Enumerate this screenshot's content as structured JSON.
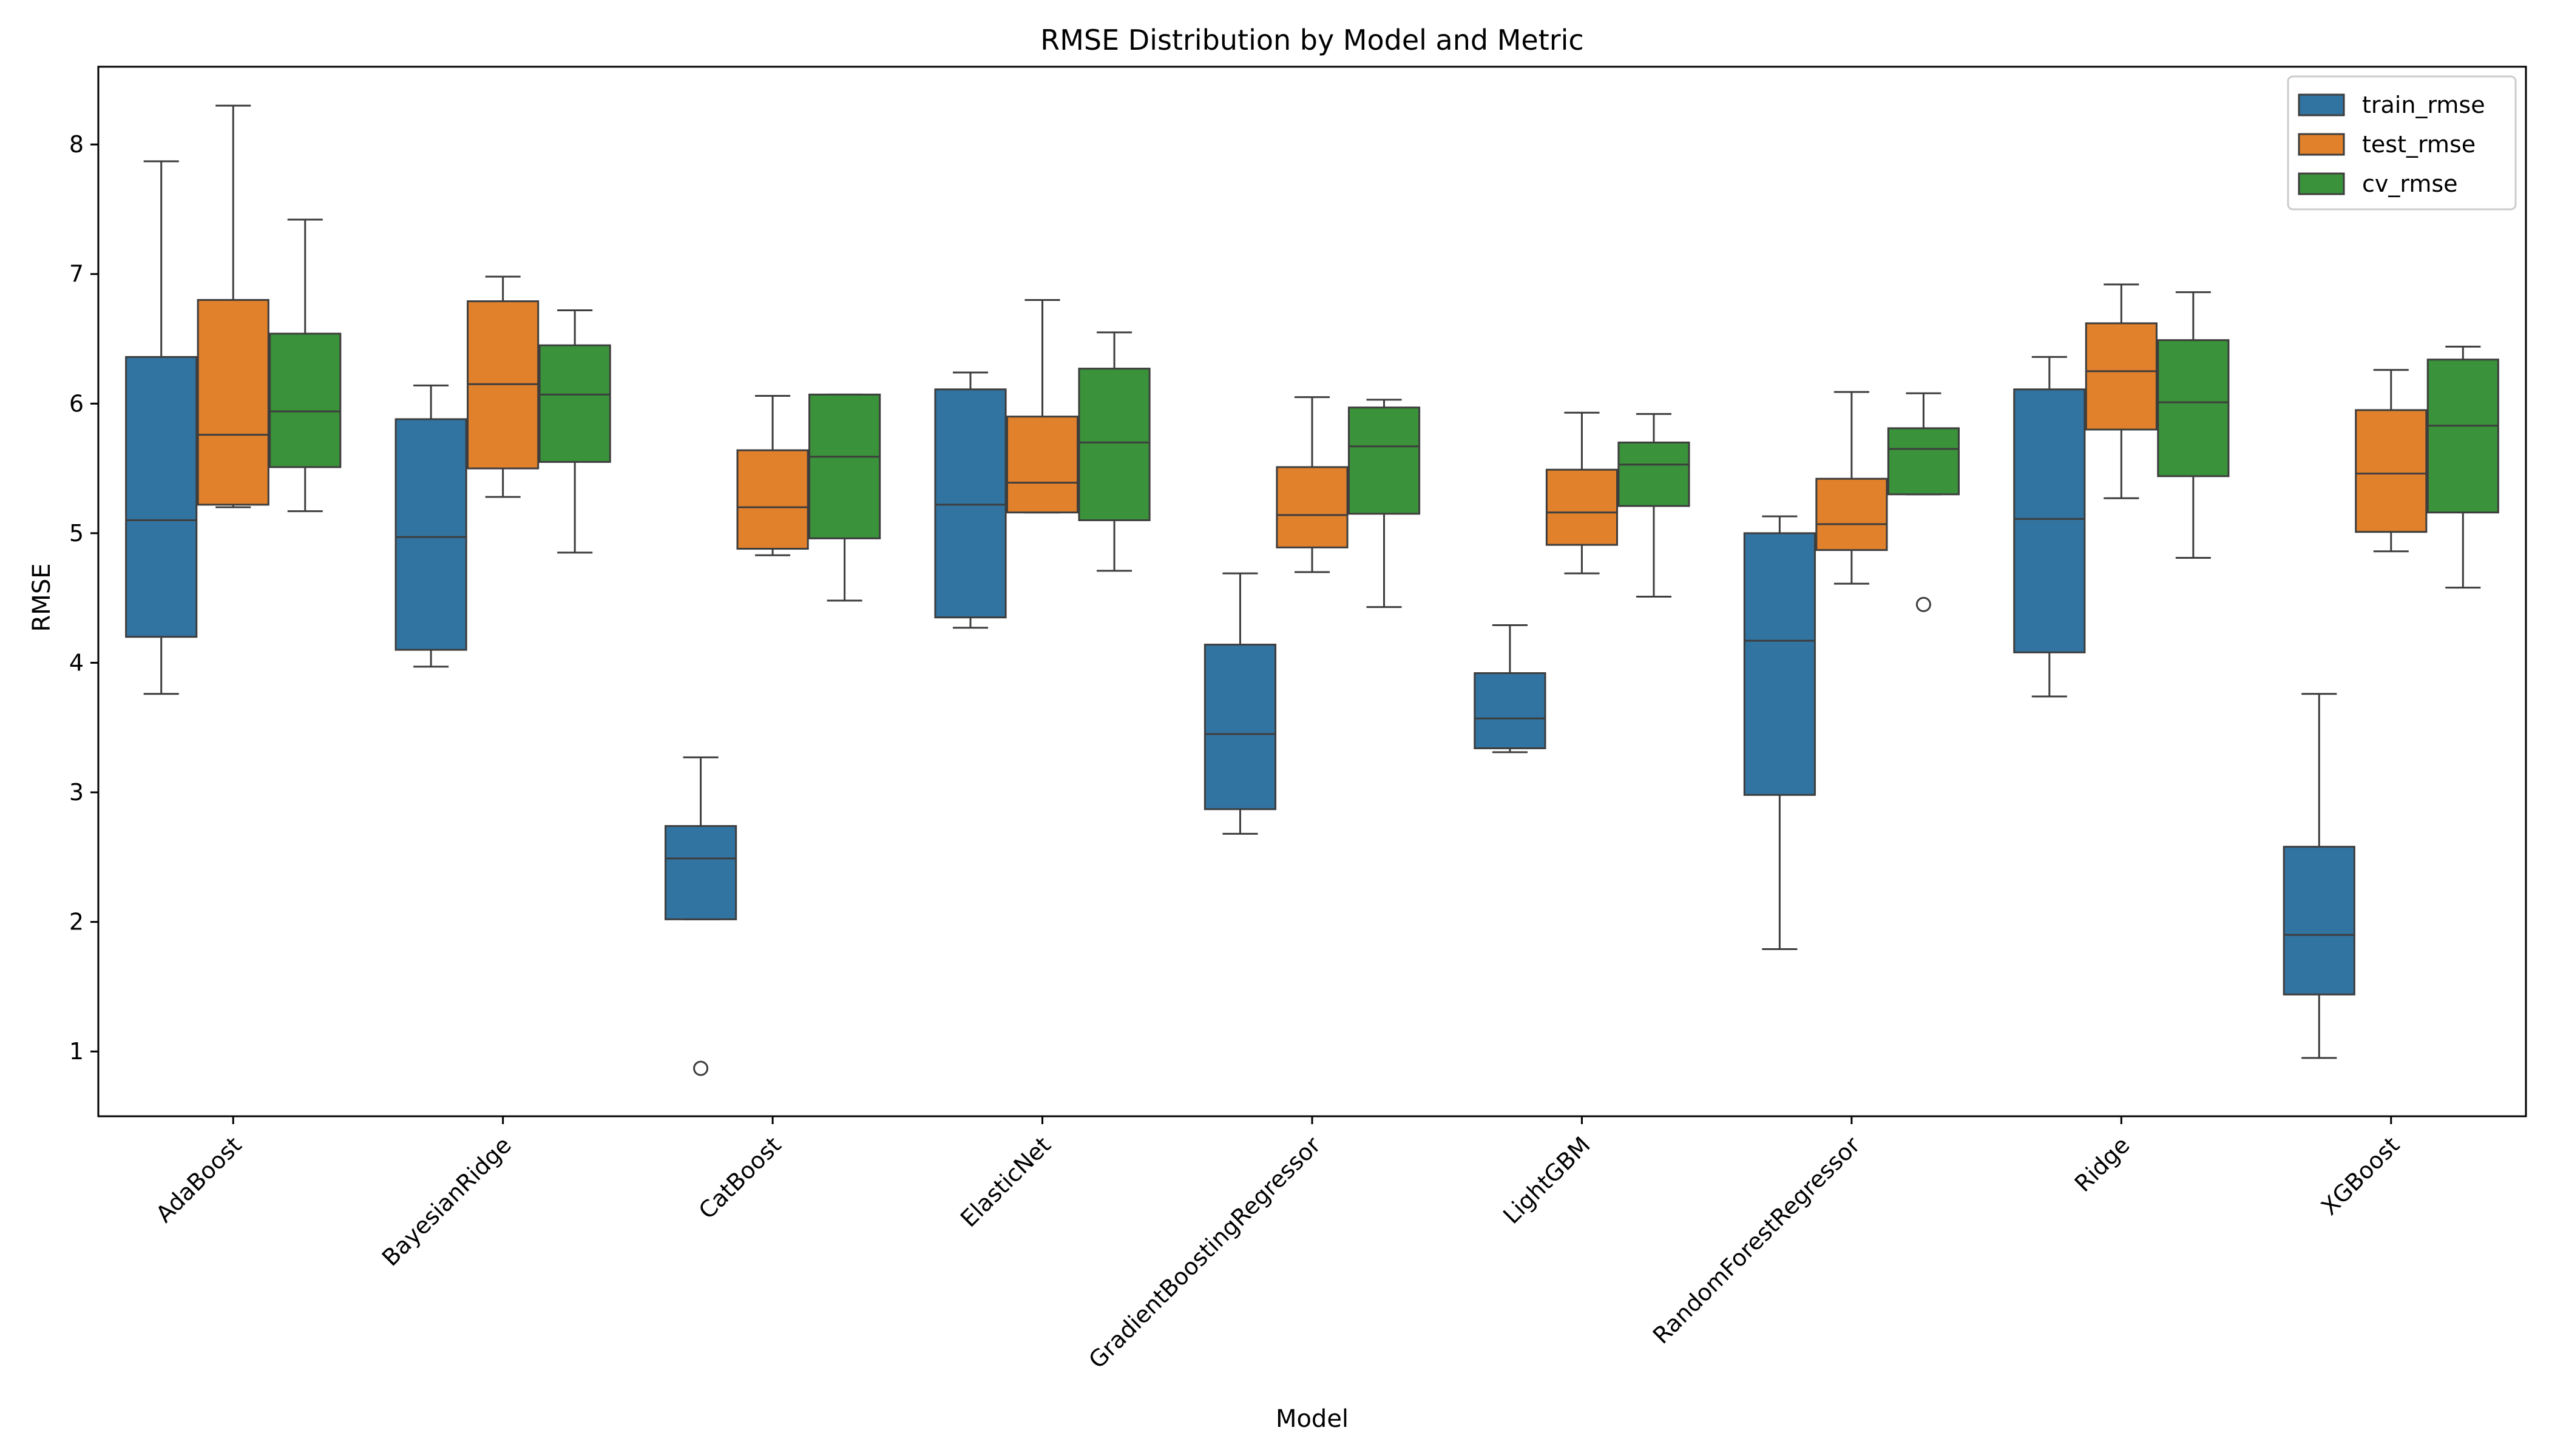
{
  "chart_data": {
    "type": "box",
    "title": "RMSE Distribution by Model and Metric",
    "xlabel": "Model",
    "ylabel": "RMSE",
    "ylim": [
      0.5,
      8.6
    ],
    "yticks": [
      1,
      2,
      3,
      4,
      5,
      6,
      7,
      8
    ],
    "grid": false,
    "legend_position": "top-right",
    "categories": [
      "AdaBoost",
      "BayesianRidge",
      "CatBoost",
      "ElasticNet",
      "GradientBoostingRegressor",
      "LightGBM",
      "RandomForestRegressor",
      "Ridge",
      "XGBoost"
    ],
    "series": [
      {
        "name": "train_rmse",
        "color": "#3274a1",
        "boxes": [
          {
            "whislo": 3.76,
            "q1": 4.2,
            "med": 5.1,
            "q3": 6.36,
            "whishi": 7.87,
            "fliers": []
          },
          {
            "whislo": 3.97,
            "q1": 4.1,
            "med": 4.97,
            "q3": 5.88,
            "whishi": 6.14,
            "fliers": []
          },
          {
            "whislo": 2.02,
            "q1": 2.02,
            "med": 2.49,
            "q3": 2.74,
            "whishi": 3.27,
            "fliers": [
              0.87
            ]
          },
          {
            "whislo": 4.27,
            "q1": 4.35,
            "med": 5.22,
            "q3": 6.11,
            "whishi": 6.24,
            "fliers": []
          },
          {
            "whislo": 2.68,
            "q1": 2.87,
            "med": 3.45,
            "q3": 4.14,
            "whishi": 4.69,
            "fliers": []
          },
          {
            "whislo": 3.31,
            "q1": 3.34,
            "med": 3.57,
            "q3": 3.92,
            "whishi": 4.29,
            "fliers": []
          },
          {
            "whislo": 1.79,
            "q1": 2.98,
            "med": 4.17,
            "q3": 5.0,
            "whishi": 5.13,
            "fliers": []
          },
          {
            "whislo": 3.74,
            "q1": 4.08,
            "med": 5.11,
            "q3": 6.11,
            "whishi": 6.36,
            "fliers": []
          },
          {
            "whislo": 0.95,
            "q1": 1.44,
            "med": 1.9,
            "q3": 2.58,
            "whishi": 3.76,
            "fliers": []
          }
        ]
      },
      {
        "name": "test_rmse",
        "color": "#e1812c",
        "boxes": [
          {
            "whislo": 5.2,
            "q1": 5.22,
            "med": 5.76,
            "q3": 6.8,
            "whishi": 8.3,
            "fliers": []
          },
          {
            "whislo": 5.28,
            "q1": 5.5,
            "med": 6.15,
            "q3": 6.79,
            "whishi": 6.98,
            "fliers": []
          },
          {
            "whislo": 4.83,
            "q1": 4.88,
            "med": 5.2,
            "q3": 5.64,
            "whishi": 6.06,
            "fliers": []
          },
          {
            "whislo": 5.16,
            "q1": 5.16,
            "med": 5.39,
            "q3": 5.9,
            "whishi": 6.8,
            "fliers": []
          },
          {
            "whislo": 4.7,
            "q1": 4.89,
            "med": 5.14,
            "q3": 5.51,
            "whishi": 6.05,
            "fliers": []
          },
          {
            "whislo": 4.69,
            "q1": 4.91,
            "med": 5.16,
            "q3": 5.49,
            "whishi": 5.93,
            "fliers": []
          },
          {
            "whislo": 4.61,
            "q1": 4.87,
            "med": 5.07,
            "q3": 5.42,
            "whishi": 6.09,
            "fliers": []
          },
          {
            "whislo": 5.27,
            "q1": 5.8,
            "med": 6.25,
            "q3": 6.62,
            "whishi": 6.92,
            "fliers": []
          },
          {
            "whislo": 4.86,
            "q1": 5.01,
            "med": 5.46,
            "q3": 5.95,
            "whishi": 6.26,
            "fliers": []
          }
        ]
      },
      {
        "name": "cv_rmse",
        "color": "#3a923a",
        "boxes": [
          {
            "whislo": 5.17,
            "q1": 5.51,
            "med": 5.94,
            "q3": 6.54,
            "whishi": 7.42,
            "fliers": []
          },
          {
            "whislo": 4.85,
            "q1": 5.55,
            "med": 6.07,
            "q3": 6.45,
            "whishi": 6.72,
            "fliers": []
          },
          {
            "whislo": 4.48,
            "q1": 4.96,
            "med": 5.59,
            "q3": 6.07,
            "whishi": 6.07,
            "fliers": []
          },
          {
            "whislo": 4.71,
            "q1": 5.1,
            "med": 5.7,
            "q3": 6.27,
            "whishi": 6.55,
            "fliers": []
          },
          {
            "whislo": 4.43,
            "q1": 5.15,
            "med": 5.67,
            "q3": 5.97,
            "whishi": 6.03,
            "fliers": []
          },
          {
            "whislo": 4.51,
            "q1": 5.21,
            "med": 5.53,
            "q3": 5.7,
            "whishi": 5.92,
            "fliers": []
          },
          {
            "whislo": 5.3,
            "q1": 5.3,
            "med": 5.65,
            "q3": 5.81,
            "whishi": 6.08,
            "fliers": [
              4.45
            ]
          },
          {
            "whislo": 4.81,
            "q1": 5.44,
            "med": 6.01,
            "q3": 6.49,
            "whishi": 6.86,
            "fliers": []
          },
          {
            "whislo": 4.58,
            "q1": 5.16,
            "med": 5.83,
            "q3": 6.34,
            "whishi": 6.44,
            "fliers": []
          }
        ]
      }
    ]
  }
}
